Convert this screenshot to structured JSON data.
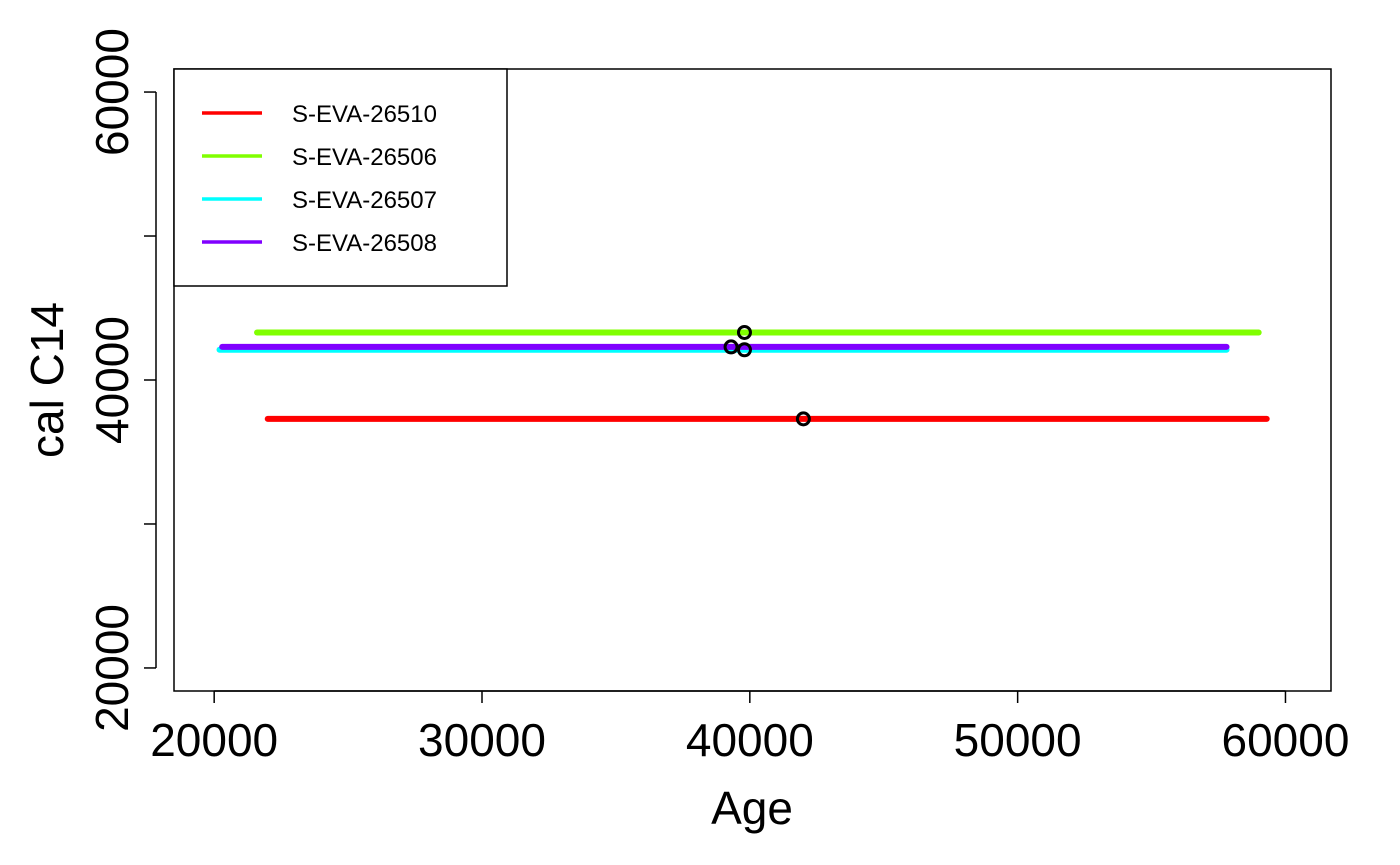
{
  "chart_data": {
    "type": "scatter",
    "title": "",
    "xlabel": "Age",
    "ylabel": "cal C14",
    "xlim": [
      18500,
      61700
    ],
    "ylim": [
      18400,
      61600
    ],
    "x_ticks": [
      20000,
      30000,
      40000,
      50000,
      60000
    ],
    "x_tick_labels": [
      "20000",
      "30000",
      "40000",
      "50000",
      "60000"
    ],
    "y_ticks": [
      20000,
      30000,
      40000,
      50000,
      60000
    ],
    "y_tick_labels": [
      "20000",
      "",
      "40000",
      "",
      "60000"
    ],
    "grid": false,
    "legend_position": "top-left",
    "series": [
      {
        "name": "S-EVA-26510",
        "color": "#ff0000",
        "x_min": 22000,
        "x_max": 59300,
        "y": 37300,
        "point_x": 42000,
        "point_y": 37300
      },
      {
        "name": "S-EVA-26506",
        "color": "#80ff00",
        "x_min": 21600,
        "x_max": 59000,
        "y": 43300,
        "point_x": 39800,
        "point_y": 43300
      },
      {
        "name": "S-EVA-26507",
        "color": "#00ffff",
        "x_min": 20200,
        "x_max": 57800,
        "y": 42100,
        "point_x": 39800,
        "point_y": 42100
      },
      {
        "name": "S-EVA-26508",
        "color": "#8000ff",
        "x_min": 20300,
        "x_max": 57800,
        "y": 42300,
        "point_x": 39300,
        "point_y": 42300
      }
    ]
  }
}
